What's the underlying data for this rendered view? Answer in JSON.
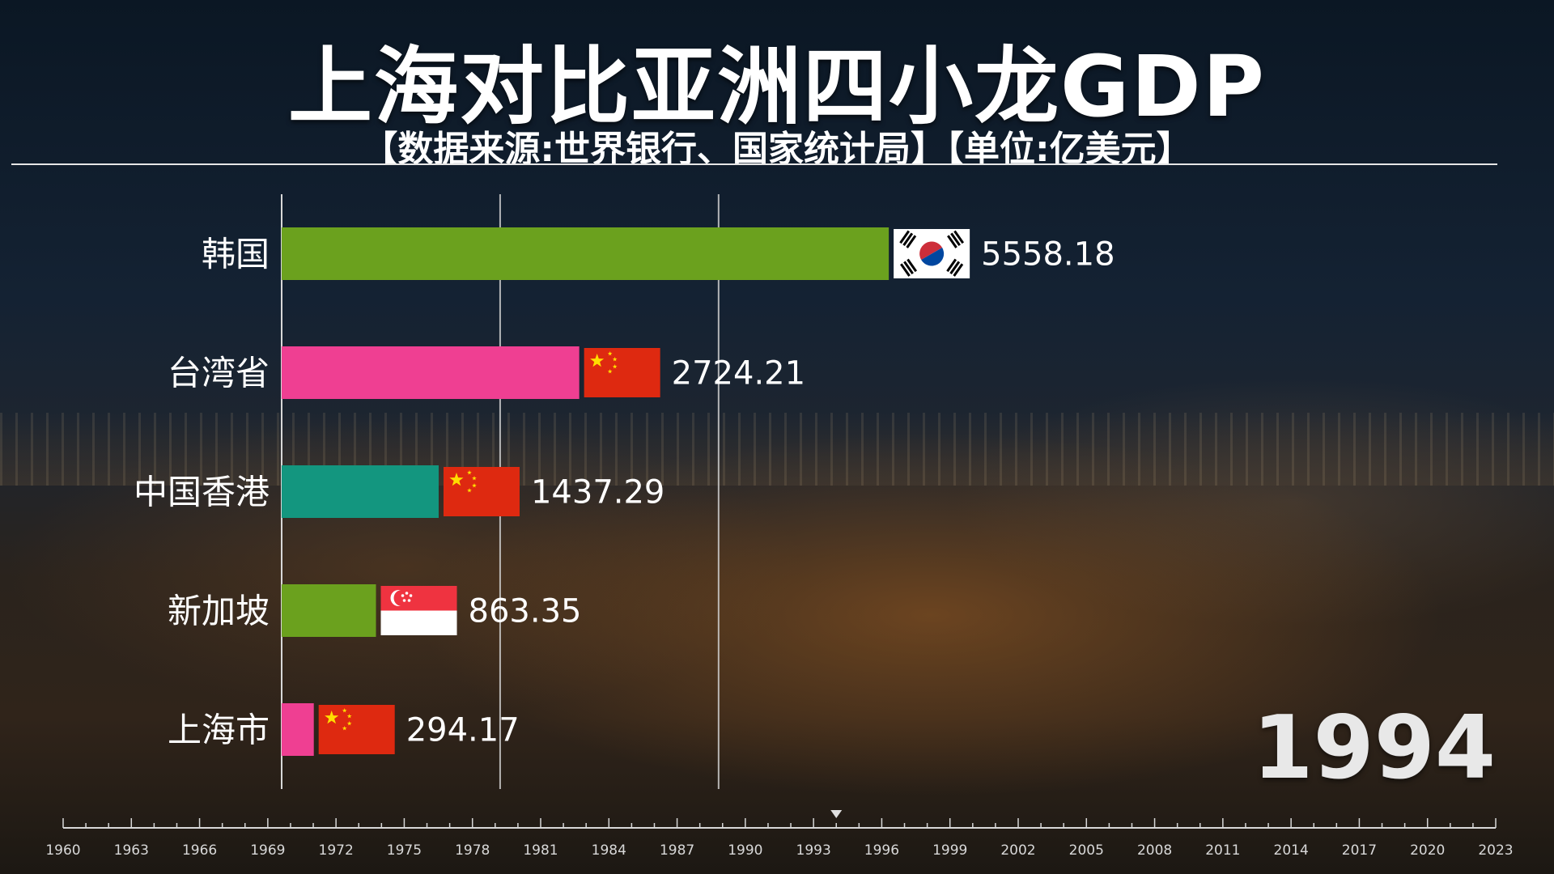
{
  "title": "上海对比亚洲四小龙GDP",
  "subtitle": "【数据来源:世界银行、国家统计局】【单位:亿美元】",
  "year": "1994",
  "colors": {
    "green": "#6ba11e",
    "pink": "#ef3f92",
    "teal": "#13967f"
  },
  "chart_data": {
    "type": "bar",
    "orientation": "horizontal",
    "title": "上海对比亚洲四小龙GDP",
    "unit": "亿美元",
    "year": 1994,
    "categories": [
      "韩国",
      "台湾省",
      "中国香港",
      "新加坡",
      "上海市"
    ],
    "values": [
      5558.18,
      2724.21,
      1437.29,
      863.35,
      294.17
    ],
    "value_labels": [
      "5558.18",
      "2724.21",
      "1437.29",
      "863.35",
      "294.17"
    ],
    "bar_colors": [
      "#6ba11e",
      "#ef3f92",
      "#13967f",
      "#6ba11e",
      "#ef3f92"
    ],
    "flags": [
      "korea-flag",
      "china-flag",
      "china-flag",
      "singapore-flag",
      "china-flag"
    ],
    "xlim": [
      0,
      6000
    ],
    "gridlines": [
      2000,
      4000
    ],
    "timeline": {
      "ticks": [
        "1960",
        "1963",
        "1966",
        "1969",
        "1972",
        "1975",
        "1978",
        "1981",
        "1984",
        "1987",
        "1990",
        "1993",
        "1996",
        "1999",
        "2002",
        "2005",
        "2008",
        "2011",
        "2014",
        "2017",
        "2020",
        "2023"
      ],
      "start": 1960,
      "end": 2023,
      "current": 1994
    }
  }
}
